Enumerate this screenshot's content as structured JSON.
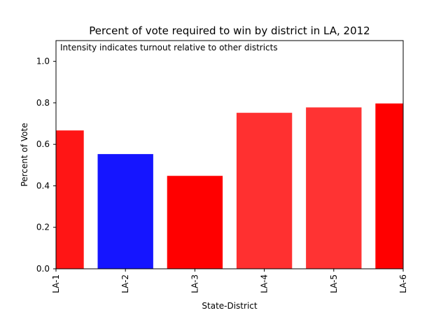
{
  "chart_data": {
    "type": "bar",
    "title": "Percent of vote required to win by district in LA, 2012",
    "annotation": "Intensity indicates turnout relative to other districts",
    "xlabel": "State-District",
    "ylabel": "Percent of Vote",
    "ylim": [
      0,
      1.1
    ],
    "yticks": [
      "0.0",
      "0.2",
      "0.4",
      "0.6",
      "0.8",
      "1.0"
    ],
    "categories": [
      "LA-1",
      "LA-2",
      "LA-3",
      "LA-4",
      "LA-5",
      "LA-6"
    ],
    "values": [
      0.667,
      0.553,
      0.448,
      0.752,
      0.778,
      0.797
    ],
    "colors": [
      "#ff1515",
      "#1515ff",
      "#ff0000",
      "#ff3030",
      "#ff3333",
      "#ff0000"
    ],
    "grid": false,
    "legend": "none"
  }
}
